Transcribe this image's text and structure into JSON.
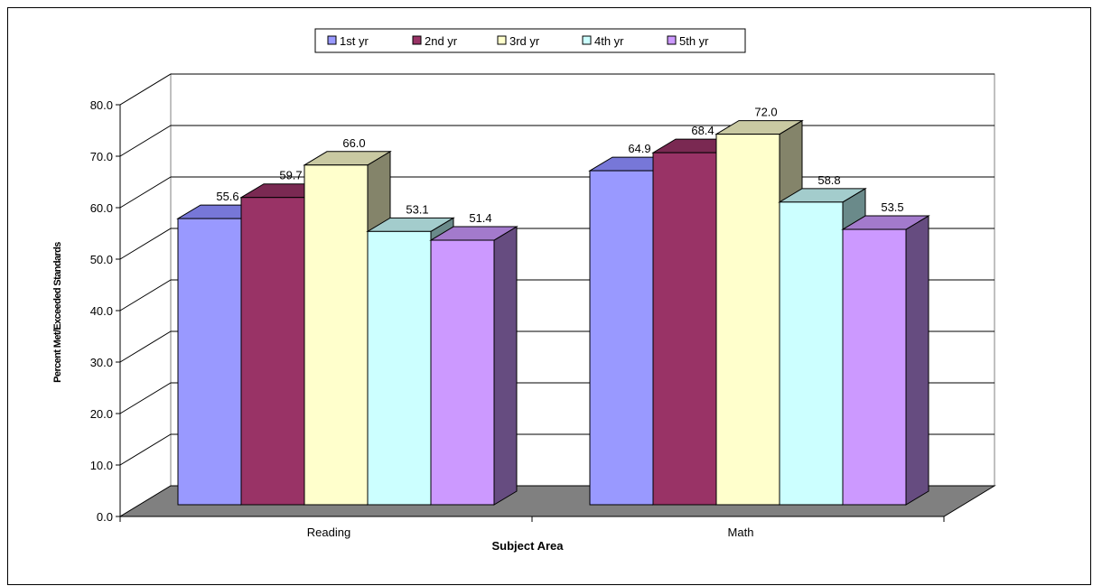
{
  "chart_data": {
    "type": "bar",
    "categories": [
      "Reading",
      "Math"
    ],
    "series": [
      {
        "name": "1st yr",
        "values": [
          55.6,
          64.9
        ],
        "color": "#9999FF",
        "side_color": "#6060B8",
        "top_color": "#7777D8"
      },
      {
        "name": "2nd yr",
        "values": [
          59.7,
          68.4
        ],
        "color": "#993366",
        "side_color": "#5E1F40",
        "top_color": "#7A2952"
      },
      {
        "name": "3rd yr",
        "values": [
          66.0,
          72.0
        ],
        "color": "#FFFFCC",
        "side_color": "#84846A",
        "top_color": "#C9C9A2"
      },
      {
        "name": "4th yr",
        "values": [
          53.1,
          58.8
        ],
        "color": "#CCFFFF",
        "side_color": "#6A8A8A",
        "top_color": "#A3CCCC"
      },
      {
        "name": "5th yr",
        "values": [
          51.4,
          53.5
        ],
        "color": "#CC99FF",
        "side_color": "#664C80",
        "top_color": "#A37ACC"
      }
    ],
    "xlabel": "Subject Area",
    "ylabel": "Percent Met/Exceeded Standards",
    "ylim": [
      0,
      80
    ],
    "yticks": [
      "0.0",
      "10.0",
      "20.0",
      "30.0",
      "40.0",
      "50.0",
      "60.0",
      "70.0",
      "80.0"
    ],
    "value_labels": [
      [
        "55.6",
        "64.9"
      ],
      [
        "59.7",
        "68.4"
      ],
      [
        "66.0",
        "72.0"
      ],
      [
        "53.1",
        "58.8"
      ],
      [
        "51.4",
        "53.5"
      ]
    ],
    "grid": true,
    "legend_position": "top-center",
    "style": "3d-clustered-column",
    "floor_color": "#808080"
  }
}
